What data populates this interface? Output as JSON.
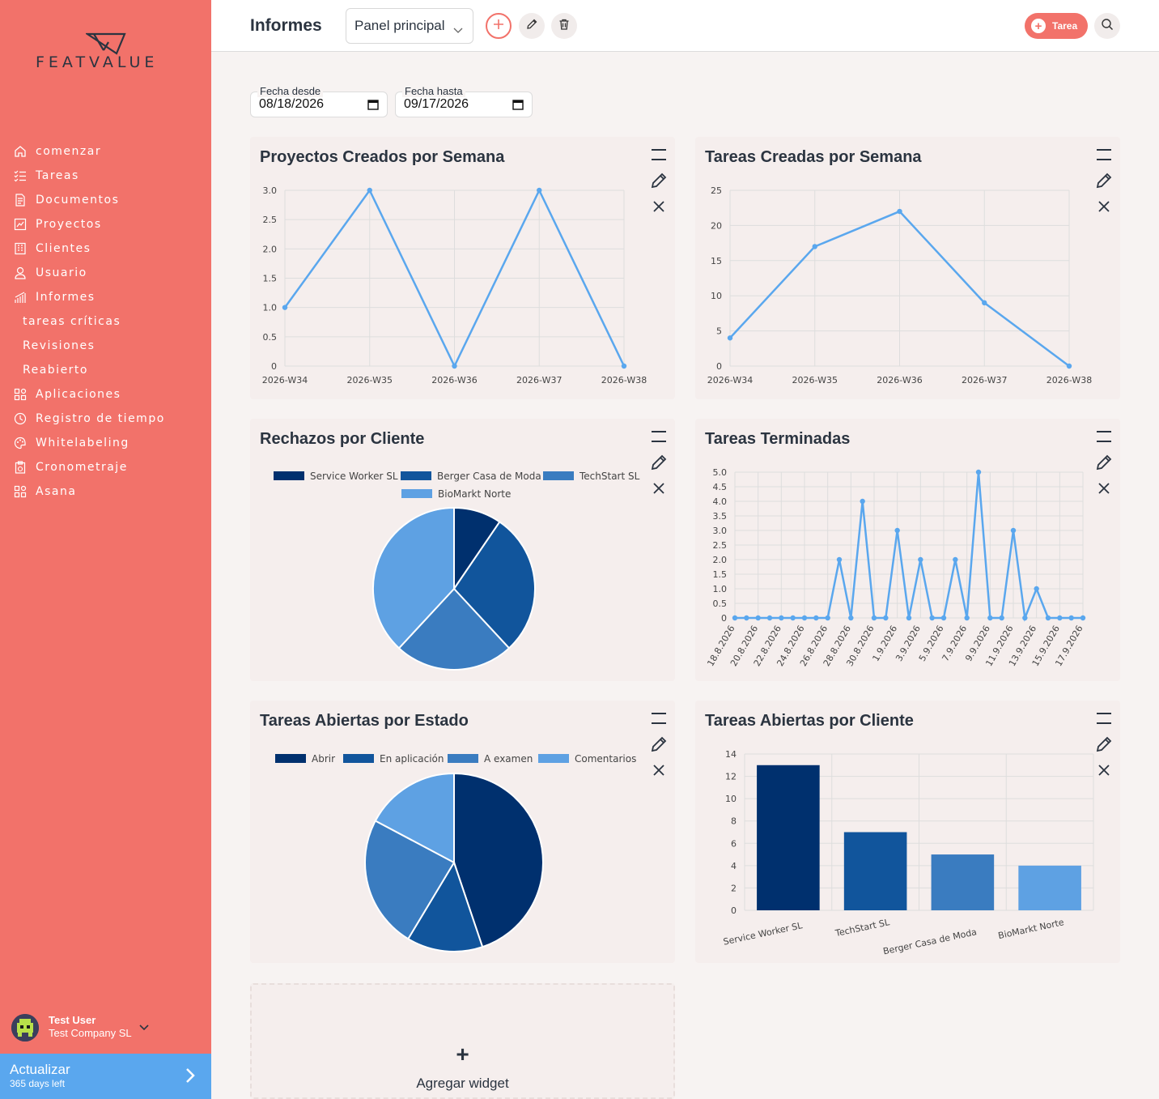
{
  "brand": {
    "logo_text": "FEATVALUE"
  },
  "sidebar": {
    "items": [
      {
        "label": "comenzar",
        "icon": "home-icon"
      },
      {
        "label": "Tareas",
        "icon": "checklist-icon"
      },
      {
        "label": "Documentos",
        "icon": "document-icon"
      },
      {
        "label": "Proyectos",
        "icon": "project-icon"
      },
      {
        "label": "Clientes",
        "icon": "building-icon"
      },
      {
        "label": "Usuario",
        "icon": "user-icon"
      },
      {
        "label": "Informes",
        "icon": "reports-icon"
      }
    ],
    "sub_items": [
      {
        "label": "tareas críticas"
      },
      {
        "label": "Revisiones"
      },
      {
        "label": "Reabierto"
      }
    ],
    "items2": [
      {
        "label": "Aplicaciones",
        "icon": "apps-icon"
      },
      {
        "label": "Registro de tiempo",
        "icon": "timer-icon"
      },
      {
        "label": "Whitelabeling",
        "icon": "palette-icon"
      },
      {
        "label": "Cronometraje",
        "icon": "clipboard-icon"
      },
      {
        "label": "Asana",
        "icon": "apps-icon"
      }
    ]
  },
  "user": {
    "name": "Test User",
    "company": "Test Company SL"
  },
  "upgrade": {
    "title": "Actualizar",
    "subtitle": "365 days left"
  },
  "header": {
    "title": "Informes",
    "dashboard_select": "Panel principal",
    "task_button": "Tarea"
  },
  "filters": {
    "from_label": "Fecha desde",
    "from_value": "08/18/2026",
    "to_label": "Fecha hasta",
    "to_value": "09/17/2026"
  },
  "widgets": {
    "w1_title": "Proyectos Creados por Semana",
    "w2_title": "Tareas Creadas por Semana",
    "w3_title": "Rechazos por Cliente",
    "w4_title": "Tareas Terminadas",
    "w5_title": "Tareas Abiertas por Estado",
    "w6_title": "Tareas Abiertas por Cliente",
    "add_label": "Agregar widget"
  },
  "colors": {
    "sidebar": "#f2726a",
    "line": "#5aa7ee",
    "navy": "#00306e",
    "blue1": "#11559c",
    "blue2": "#3a7cc0",
    "blue3": "#5ea1e3"
  },
  "chart_data": [
    {
      "type": "line",
      "title": "Proyectos Creados por Semana",
      "x": [
        "2026-W34",
        "2026-W35",
        "2026-W36",
        "2026-W37",
        "2026-W38"
      ],
      "y_ticks": [
        "3.0",
        "2.5",
        "2.0",
        "1.5",
        "1.0",
        "0.5",
        "0"
      ],
      "series": [
        {
          "values": [
            1,
            3,
            0,
            3,
            0
          ]
        }
      ],
      "ylim": [
        0,
        3
      ],
      "grid": true
    },
    {
      "type": "line",
      "title": "Tareas Creadas por Semana",
      "x": [
        "2026-W34",
        "2026-W35",
        "2026-W36",
        "2026-W37",
        "2026-W38"
      ],
      "y_ticks": [
        "25",
        "20",
        "15",
        "10",
        "5",
        "0"
      ],
      "series": [
        {
          "values": [
            4,
            17,
            22,
            9,
            0
          ]
        }
      ],
      "ylim": [
        0,
        25
      ],
      "grid": true
    },
    {
      "type": "pie",
      "title": "Rechazos por Cliente",
      "categories": [
        "Service Worker SL",
        "Berger Casa de Moda",
        "TechStart SL",
        "BioMarkt Norte"
      ],
      "values": [
        1,
        3,
        2.5,
        4
      ],
      "legend": "top"
    },
    {
      "type": "line",
      "title": "Tareas Terminadas",
      "x": [
        "18.8.2026",
        "19.8.2026",
        "20.8.2026",
        "21.8.2026",
        "22.8.2026",
        "23.8.2026",
        "24.8.2026",
        "25.8.2026",
        "26.8.2026",
        "27.8.2026",
        "28.8.2026",
        "29.8.2026",
        "30.8.2026",
        "31.8.2026",
        "1.9.2026",
        "2.9.2026",
        "3.9.2026",
        "4.9.2026",
        "5.9.2026",
        "6.9.2026",
        "7.9.2026",
        "8.9.2026",
        "9.9.2026",
        "10.9.2026",
        "11.9.2026",
        "12.9.2026",
        "13.9.2026",
        "14.9.2026",
        "15.9.2026",
        "16.9.2026",
        "17.9.2026"
      ],
      "x_tick_labels": [
        "18.8.2026",
        "20.8.2026",
        "22.8.2026",
        "24.8.2026",
        "26.8.2026",
        "28.8.2026",
        "30.8.2026",
        "1.9.2026",
        "3.9.2026",
        "5.9.2026",
        "7.9.2026",
        "9.9.2026",
        "11.9.2026",
        "13.9.2026",
        "15.9.2026",
        "17.9.2026"
      ],
      "y_ticks": [
        "5.0",
        "4.5",
        "4.0",
        "3.5",
        "3.0",
        "2.5",
        "2.0",
        "1.5",
        "1.0",
        "0.5",
        "0"
      ],
      "series": [
        {
          "values": [
            0,
            0,
            0,
            0,
            0,
            0,
            0,
            0,
            0,
            2,
            0,
            4,
            0,
            0,
            3,
            0,
            2,
            0,
            0,
            2,
            0,
            5,
            0,
            0,
            3,
            0,
            1,
            0,
            0,
            0,
            0
          ]
        }
      ],
      "ylim": [
        0,
        5
      ],
      "grid": true
    },
    {
      "type": "pie",
      "title": "Tareas Abiertas por Estado",
      "categories": [
        "Abrir",
        "En aplicación",
        "A examen",
        "Comentarios"
      ],
      "values": [
        13,
        4,
        7,
        5
      ],
      "legend": "top"
    },
    {
      "type": "bar",
      "title": "Tareas Abiertas por Cliente",
      "categories": [
        "Service Worker SL",
        "TechStart SL",
        "Berger Casa de Moda",
        "BioMarkt Norte"
      ],
      "values": [
        13,
        7,
        5,
        4
      ],
      "y_ticks": [
        "14",
        "12",
        "10",
        "8",
        "6",
        "4",
        "2",
        "0"
      ],
      "ylim": [
        0,
        14
      ],
      "grid": true
    }
  ]
}
